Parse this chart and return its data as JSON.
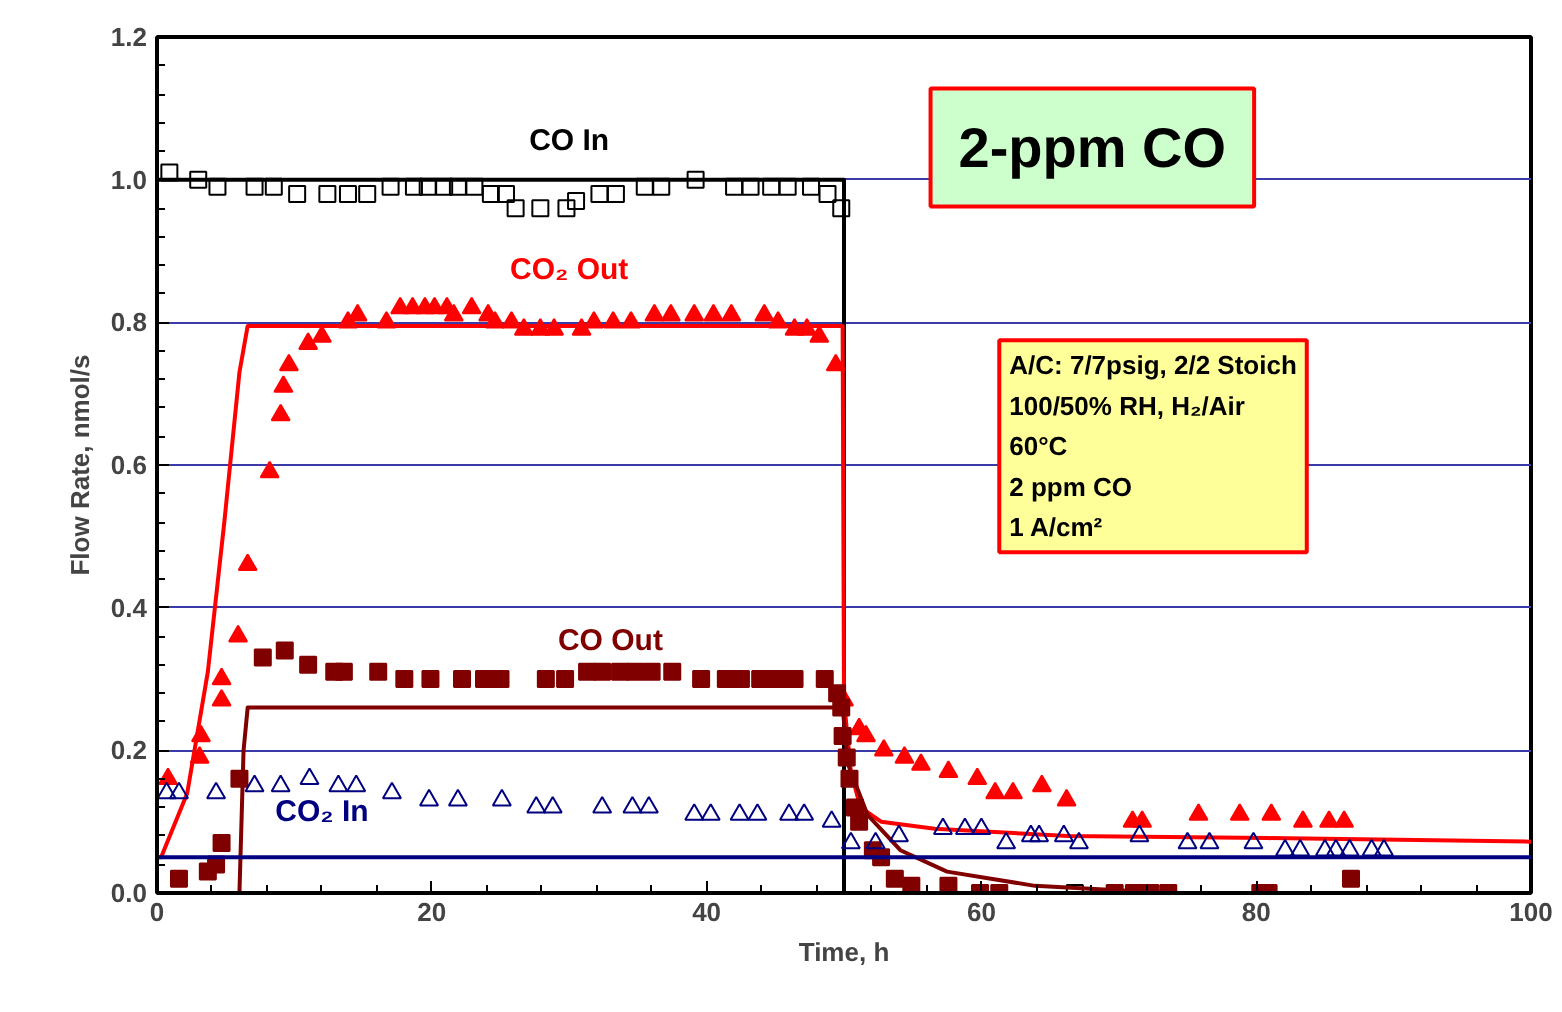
{
  "chart_data": {
    "type": "scatter",
    "xlabel": "Time, h",
    "ylabel": "Flow Rate, nmol/s",
    "xlim": [
      0,
      100
    ],
    "xticks": [
      0,
      20,
      40,
      60,
      80,
      100
    ],
    "ylim": [
      0,
      1.2
    ],
    "yticks": [
      {
        "value": 0,
        "label": "0.0"
      },
      {
        "value": 0.2,
        "label": "0.2"
      },
      {
        "value": 0.4,
        "label": "0.4"
      },
      {
        "value": 0.6,
        "label": "0.6"
      },
      {
        "value": 0.8,
        "label": "0.8"
      },
      {
        "value": 1.0,
        "label": "1.0"
      },
      {
        "value": 1.2,
        "label": "1.2"
      }
    ],
    "grid": "y",
    "annotations": [
      "2-ppm CO",
      "A/C: 7/7psig, 2/2 Stoich\n100/50% RH, H₂/Air\n60°C\n2 ppm CO\n1 A/cm²"
    ],
    "series": [
      {
        "name": "CO In",
        "marker": "square",
        "color": "#000000",
        "x": [
          0.9,
          3.0,
          4.4,
          7.1,
          8.5,
          10.2,
          12.4,
          13.9,
          15.3,
          17.0,
          18.7,
          19.7,
          20.9,
          21.9,
          23.1,
          24.3,
          25.4,
          26.1,
          27.9,
          29.8,
          30.5,
          32.2,
          33.4,
          35.5,
          36.7,
          39.2,
          42.0,
          43.2,
          44.7,
          45.9,
          47.6,
          48.8,
          49.8,
          66.8
        ],
        "values": [
          1.01,
          1.0,
          0.99,
          0.99,
          0.99,
          0.98,
          0.98,
          0.98,
          0.98,
          0.99,
          0.99,
          0.99,
          0.99,
          0.99,
          0.99,
          0.98,
          0.98,
          0.96,
          0.96,
          0.96,
          0.97,
          0.98,
          0.98,
          0.99,
          0.99,
          1.0,
          0.99,
          0.99,
          0.99,
          0.99,
          0.99,
          0.98,
          0.96,
          0.0
        ]
      },
      {
        "type": "line",
        "color": "#000000",
        "x": [
          0,
          50,
          50
        ],
        "values": [
          1.0,
          1.0,
          0.0
        ]
      },
      {
        "name": "CO₂ Out",
        "marker": "triangle",
        "color": "#ff0000",
        "x": [
          0.8,
          3.1,
          3.2,
          4.7,
          4.7,
          5.9,
          6.6,
          8.2,
          9.0,
          9.2,
          9.6,
          11.0,
          12.0,
          13.9,
          14.6,
          16.7,
          17.7,
          18.6,
          19.5,
          20.2,
          21.1,
          21.6,
          22.9,
          24.1,
          24.6,
          25.8,
          26.7,
          27.9,
          28.9,
          30.9,
          31.8,
          33.2,
          34.5,
          36.2,
          37.4,
          39.1,
          40.5,
          41.8,
          44.2,
          45.2,
          46.4,
          47.3,
          48.2,
          49.4,
          50.0,
          51.1,
          51.6,
          52.9,
          54.4,
          55.6,
          57.6,
          59.7,
          61.0,
          62.3,
          64.4,
          66.2,
          71.0,
          71.7,
          75.8,
          78.8,
          81.1,
          83.4,
          85.3,
          86.4
        ],
        "values": [
          0.16,
          0.19,
          0.22,
          0.27,
          0.3,
          0.36,
          0.46,
          0.59,
          0.67,
          0.71,
          0.74,
          0.77,
          0.78,
          0.8,
          0.81,
          0.8,
          0.82,
          0.82,
          0.82,
          0.82,
          0.82,
          0.81,
          0.82,
          0.81,
          0.8,
          0.8,
          0.79,
          0.79,
          0.79,
          0.79,
          0.8,
          0.8,
          0.8,
          0.81,
          0.81,
          0.81,
          0.81,
          0.81,
          0.81,
          0.8,
          0.79,
          0.79,
          0.78,
          0.74,
          0.27,
          0.23,
          0.22,
          0.2,
          0.19,
          0.18,
          0.17,
          0.16,
          0.14,
          0.14,
          0.15,
          0.13,
          0.1,
          0.1,
          0.11,
          0.11,
          0.11,
          0.1,
          0.1,
          0.1
        ]
      },
      {
        "type": "line",
        "color": "#ff0000",
        "x": [
          0,
          0.3,
          2.2,
          3.7,
          4.9,
          6.0,
          6.6,
          49.9,
          50.0,
          50.5,
          51.2,
          52.7,
          56.6,
          66.3,
          80.8,
          100
        ],
        "values": [
          0.05,
          0.05,
          0.14,
          0.31,
          0.52,
          0.73,
          0.795,
          0.795,
          0.27,
          0.17,
          0.12,
          0.1,
          0.09,
          0.08,
          0.077,
          0.072
        ]
      },
      {
        "name": "CO Out",
        "marker": "square",
        "color": "#800000",
        "x": [
          1.6,
          3.7,
          4.3,
          4.7,
          6.0,
          7.7,
          9.3,
          11.0,
          12.9,
          13.6,
          16.1,
          18.0,
          19.9,
          22.2,
          23.8,
          25.0,
          28.3,
          29.7,
          31.3,
          32.4,
          33.7,
          34.8,
          36.0,
          37.5,
          39.6,
          41.4,
          42.5,
          43.9,
          44.7,
          45.7,
          46.4,
          48.6,
          49.5,
          49.8,
          49.9,
          50.2,
          50.4,
          50.8,
          51.1,
          52.1,
          52.7,
          53.7,
          54.9,
          57.6,
          59.9,
          61.3,
          69.7,
          71.1,
          72.3,
          73.6,
          80.3,
          80.9,
          86.9
        ],
        "values": [
          0.02,
          0.03,
          0.04,
          0.07,
          0.16,
          0.33,
          0.34,
          0.32,
          0.31,
          0.31,
          0.31,
          0.3,
          0.3,
          0.3,
          0.3,
          0.3,
          0.3,
          0.3,
          0.31,
          0.31,
          0.31,
          0.31,
          0.31,
          0.31,
          0.3,
          0.3,
          0.3,
          0.3,
          0.3,
          0.3,
          0.3,
          0.3,
          0.28,
          0.26,
          0.22,
          0.19,
          0.16,
          0.12,
          0.1,
          0.06,
          0.05,
          0.02,
          0.01,
          0.01,
          0.0,
          0.0,
          0.0,
          0.0,
          0.0,
          0.0,
          0.0,
          0.0,
          0.02
        ]
      },
      {
        "type": "line",
        "color": "#800000",
        "x": [
          0,
          6.0,
          6.3,
          6.6,
          49.9,
          50.0,
          50.3,
          51.7,
          54.1,
          57.5,
          63.9,
          73.6,
          100
        ],
        "values": [
          0.0,
          0.0,
          0.2,
          0.26,
          0.26,
          0.24,
          0.18,
          0.11,
          0.06,
          0.03,
          0.01,
          0.0,
          0.0
        ]
      },
      {
        "name": "CO₂ In",
        "marker": "triangle",
        "color": "#000080",
        "x": [
          0.7,
          1.6,
          4.3,
          7.1,
          9.0,
          11.1,
          13.2,
          14.5,
          17.1,
          19.8,
          21.9,
          25.1,
          27.6,
          28.8,
          32.4,
          34.6,
          35.8,
          39.1,
          40.3,
          42.4,
          43.7,
          46.0,
          47.1,
          49.1,
          50.5,
          52.3,
          54.0,
          57.2,
          58.8,
          60.0,
          61.8,
          63.6,
          64.2,
          66.0,
          67.1,
          71.5,
          75.0,
          76.6,
          79.8,
          82.1,
          83.2,
          85.0,
          85.8,
          86.8,
          88.4,
          89.3
        ],
        "values": [
          0.14,
          0.14,
          0.14,
          0.15,
          0.15,
          0.16,
          0.15,
          0.15,
          0.14,
          0.13,
          0.13,
          0.13,
          0.12,
          0.12,
          0.12,
          0.12,
          0.12,
          0.11,
          0.11,
          0.11,
          0.11,
          0.11,
          0.11,
          0.1,
          0.07,
          0.07,
          0.08,
          0.09,
          0.09,
          0.09,
          0.07,
          0.08,
          0.08,
          0.08,
          0.07,
          0.08,
          0.07,
          0.07,
          0.07,
          0.06,
          0.06,
          0.06,
          0.06,
          0.06,
          0.06,
          0.06
        ]
      },
      {
        "type": "line",
        "color": "#000080",
        "x": [
          0,
          100
        ],
        "values": [
          0.05,
          0.05
        ]
      }
    ]
  }
}
